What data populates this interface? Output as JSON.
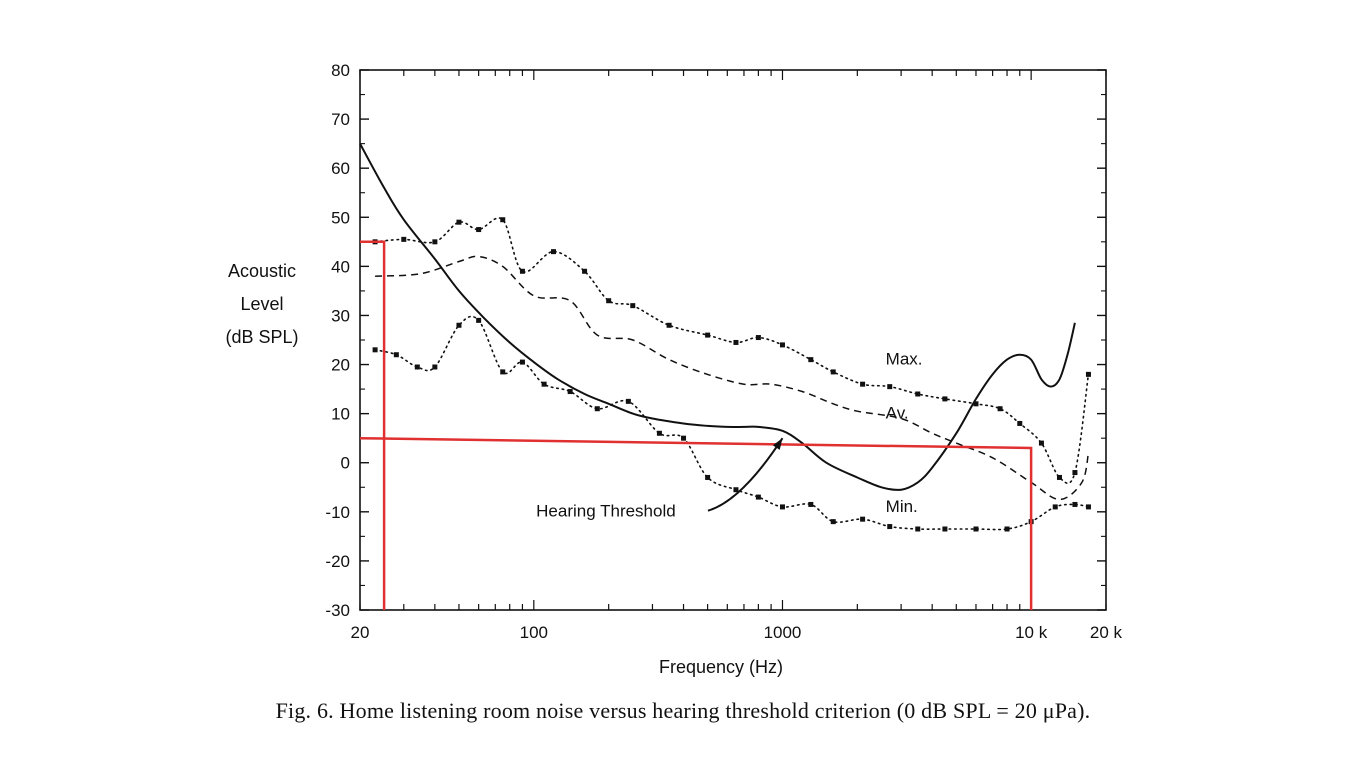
{
  "caption": "Fig. 6. Home listening room noise versus hearing threshold criterion (0 dB SPL = 20 μPa).",
  "chart_data": {
    "type": "line",
    "xlabel": "Frequency (Hz)",
    "ylabel_lines": [
      "Acoustic",
      "Level",
      "(dB SPL)"
    ],
    "x_scale": "log",
    "xlim": [
      20,
      20000
    ],
    "ylim": [
      -30,
      80
    ],
    "x_ticks": [
      {
        "value": 20,
        "label": "20"
      },
      {
        "value": 100,
        "label": "100"
      },
      {
        "value": 1000,
        "label": "1000"
      },
      {
        "value": 10000,
        "label": "10 k"
      },
      {
        "value": 20000,
        "label": "20 k"
      }
    ],
    "y_ticks": [
      -30,
      -20,
      -10,
      0,
      10,
      20,
      30,
      40,
      50,
      60,
      70,
      80
    ],
    "grid": false,
    "series": [
      {
        "name": "Max.",
        "style": "dotted",
        "x": [
          23,
          30,
          40,
          50,
          60,
          75,
          90,
          120,
          160,
          200,
          250,
          350,
          500,
          650,
          800,
          1000,
          1300,
          1600,
          2100,
          2700,
          3500,
          4500,
          6000,
          7500,
          9000,
          11000,
          13000,
          15000,
          17000
        ],
        "y": [
          45,
          45.5,
          45,
          49,
          47.5,
          49.5,
          39,
          43,
          39,
          33,
          32,
          28,
          26,
          24.5,
          25.5,
          24,
          21,
          18.5,
          16,
          15.5,
          14,
          13,
          12,
          11,
          8,
          4,
          -3,
          -2,
          18
        ]
      },
      {
        "name": "Av.",
        "style": "dashed",
        "x": [
          23,
          35,
          50,
          60,
          75,
          100,
          140,
          180,
          250,
          350,
          500,
          700,
          900,
          1200,
          1600,
          2000,
          3000,
          4000,
          5000,
          7000,
          10000,
          13000,
          16000,
          17000
        ],
        "y": [
          38,
          38.5,
          41,
          42,
          40,
          34,
          33,
          26,
          25,
          21,
          18,
          16,
          16,
          14.5,
          12,
          10.5,
          9,
          6,
          4,
          1,
          -4,
          -7.5,
          -4,
          2
        ]
      },
      {
        "name": "Min.",
        "style": "dotted",
        "x": [
          23,
          28,
          34,
          40,
          50,
          60,
          75,
          90,
          110,
          140,
          180,
          240,
          320,
          400,
          500,
          650,
          800,
          1000,
          1300,
          1600,
          2100,
          2700,
          3500,
          4500,
          6000,
          8000,
          10000,
          12500,
          15000,
          17000
        ],
        "y": [
          23,
          22,
          19.5,
          19.5,
          28,
          29,
          18.5,
          20.5,
          16,
          14.5,
          11,
          12.5,
          6,
          5,
          -3,
          -5.5,
          -7,
          -9,
          -8.5,
          -12,
          -11.5,
          -13,
          -13.5,
          -13.5,
          -13.5,
          -13.5,
          -12,
          -9,
          -8.5,
          -9
        ]
      },
      {
        "name": "Hearing Threshold",
        "style": "solid",
        "x": [
          20,
          25,
          30,
          40,
          50,
          63,
          80,
          100,
          125,
          160,
          200,
          250,
          300,
          400,
          500,
          600,
          700,
          800,
          1000,
          1200,
          1500,
          2000,
          2500,
          3000,
          3500,
          4000,
          5000,
          6000,
          7000,
          8000,
          9000,
          10000,
          11000,
          12000,
          13000,
          14000,
          15000
        ],
        "y": [
          65,
          56,
          49.5,
          41.5,
          35,
          29.5,
          24.5,
          20.5,
          17,
          14,
          12,
          10,
          9,
          8,
          7.5,
          7.3,
          7.3,
          7.3,
          6.5,
          4,
          0,
          -3,
          -5,
          -5.5,
          -4,
          -1,
          6,
          13,
          18,
          21,
          22,
          21,
          17,
          15.5,
          17,
          22,
          28.5
        ]
      }
    ],
    "annotations": [
      {
        "text": "Max.",
        "x": 2600,
        "y": 20
      },
      {
        "text": "Av.",
        "x": 2600,
        "y": 9
      },
      {
        "text": "Min.",
        "x": 2600,
        "y": -10
      },
      {
        "text": "Hearing Threshold",
        "x": 195,
        "y": -11,
        "arrow_to": {
          "x": 1000,
          "y": 5
        }
      }
    ],
    "overlay_lines": [
      {
        "color": "#e03030",
        "points": [
          [
            20,
            45
          ],
          [
            25,
            45
          ],
          [
            25,
            -30
          ]
        ]
      },
      {
        "color": "#e03030",
        "points": [
          [
            20,
            5
          ],
          [
            10000,
            3
          ],
          [
            10000,
            -30
          ]
        ]
      }
    ]
  }
}
